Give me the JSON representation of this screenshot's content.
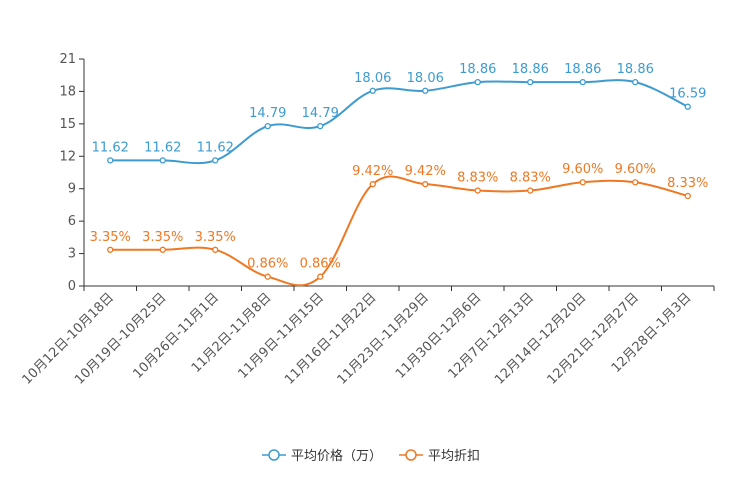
{
  "chart_data": {
    "type": "line",
    "title": "",
    "xlabel": "",
    "ylabel": "",
    "ylim": [
      0,
      21
    ],
    "yticks": [
      0,
      3,
      6,
      9,
      12,
      15,
      18,
      21
    ],
    "grid": false,
    "legend_position": "bottom-center",
    "categories": [
      "10月12日-10月18日",
      "10月19日-10月25日",
      "10月26日-11月1日",
      "11月2日-11月8日",
      "11月9日-11月15日",
      "11月16日-11月22日",
      "11月23日-11月29日",
      "11月30日-12月6日",
      "12月7日-12月13日",
      "12月14日-12月20日",
      "12月21日-12月27日",
      "12月28日-1月3日"
    ],
    "series": [
      {
        "name": "平均价格（万）",
        "color": "#3d9bd0",
        "values": [
          11.62,
          11.62,
          11.62,
          14.79,
          14.79,
          18.06,
          18.06,
          18.86,
          18.86,
          18.86,
          18.86,
          16.59
        ],
        "labels": [
          "11.62",
          "11.62",
          "11.62",
          "14.79",
          "14.79",
          "18.06",
          "18.06",
          "18.86",
          "18.86",
          "18.86",
          "18.86",
          "16.59"
        ]
      },
      {
        "name": "平均折扣",
        "color": "#f07823",
        "values": [
          3.35,
          3.35,
          3.35,
          0.86,
          0.86,
          9.42,
          9.42,
          8.83,
          8.83,
          9.6,
          9.6,
          8.33
        ],
        "labels": [
          "3.35%",
          "3.35%",
          "3.35%",
          "0.86%",
          "0.86%",
          "9.42%",
          "9.42%",
          "8.83%",
          "8.83%",
          "9.60%",
          "9.60%",
          "8.33%"
        ]
      }
    ]
  }
}
